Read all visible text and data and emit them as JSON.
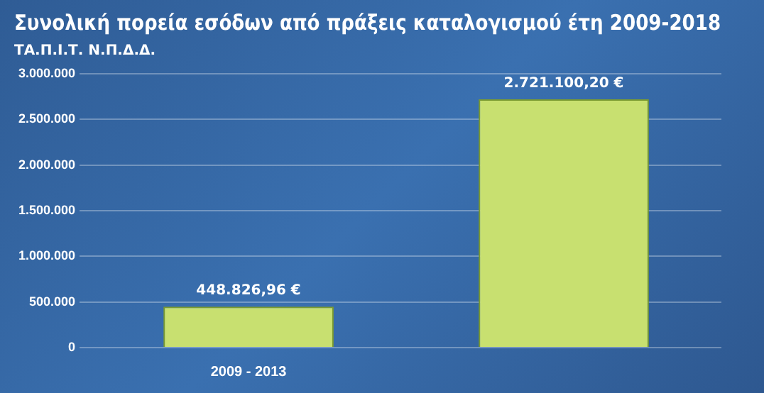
{
  "chart_data": {
    "type": "bar",
    "title": "Συνολική πορεία εσόδων από πράξεις καταλογισμού έτη 2009-2018",
    "subtitle": "ΤΑ.Π.Ι.Τ. Ν.Π.Δ.Δ.",
    "categories": [
      "2009 - 2013",
      null
    ],
    "values": [
      448826.96,
      2721100.2
    ],
    "value_labels": [
      "448.826,96 €",
      "2.721.100,20 €"
    ],
    "color": "#c8e070",
    "ylim": [
      0,
      3000000
    ],
    "yticks": [
      {
        "value": 0,
        "label": "0"
      },
      {
        "value": 500000,
        "label": "500.000"
      },
      {
        "value": 1000000,
        "label": "1.000.000"
      },
      {
        "value": 1500000,
        "label": "1.500.000"
      },
      {
        "value": 2000000,
        "label": "2.000.000"
      },
      {
        "value": 2500000,
        "label": "2.500.000"
      },
      {
        "value": 3000000,
        "label": "3.000.000"
      }
    ],
    "grid": "y",
    "legend": false
  }
}
